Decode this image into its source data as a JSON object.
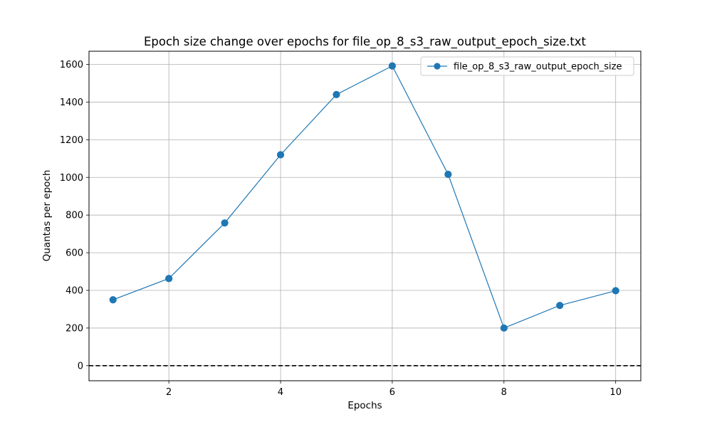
{
  "chart_data": {
    "type": "line",
    "title": "Epoch size change over epochs for file_op_8_s3_raw_output_epoch_size.txt",
    "xlabel": "Epochs",
    "ylabel": "Quantas per epoch",
    "x": [
      1,
      2,
      3,
      4,
      5,
      6,
      7,
      8,
      9,
      10
    ],
    "series": [
      {
        "name": "file_op_8_s3_raw_output_epoch_size",
        "values": [
          350,
          463,
          758,
          1120,
          1440,
          1592,
          1016,
          200,
          320,
          398
        ],
        "color": "#1f77b4",
        "marker": "circle"
      }
    ],
    "xlim": [
      0.57,
      10.45
    ],
    "ylim": [
      -80,
      1670
    ],
    "xticks": [
      2,
      4,
      6,
      8,
      10
    ],
    "yticks": [
      0,
      200,
      400,
      600,
      800,
      1000,
      1200,
      1400,
      1600
    ],
    "reference_line": {
      "y": 0,
      "style": "dashed",
      "color": "#000000"
    },
    "grid": true,
    "legend_position": "top-right"
  }
}
